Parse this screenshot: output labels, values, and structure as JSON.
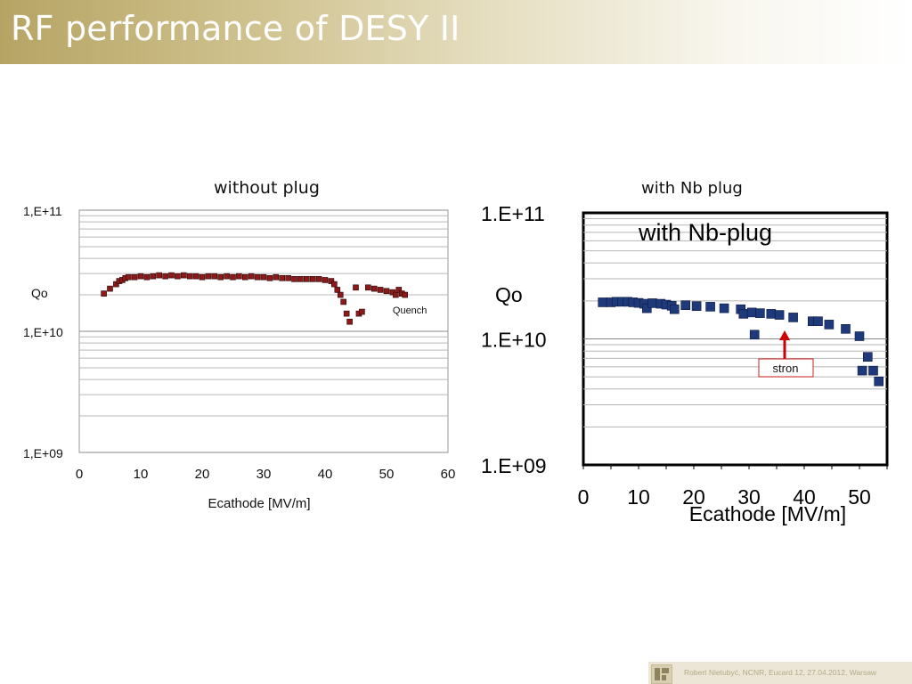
{
  "slide": {
    "title": "RF performance of DESY II",
    "footer": "Robert Nietubyć, NCNR,  Eucard 12, 27.04.2012, Warsaw"
  },
  "colors": {
    "title_gradient": [
      "#b6a464",
      "#ffffff"
    ],
    "series_left": "#8b1a1a",
    "series_right": "#1f3a7a",
    "arrow": "#cc0000"
  },
  "chart_data": [
    {
      "type": "scatter",
      "title": "without plug",
      "xlabel": "Ecathode [MV/m]",
      "ylabel": "Qo",
      "xlim": [
        0,
        60
      ],
      "ylim": [
        1000000000.0,
        100000000000.0
      ],
      "yscale": "log",
      "x_ticks": [
        "0",
        "10",
        "20",
        "30",
        "40",
        "50",
        "60"
      ],
      "y_ticks": [
        "1,E+09",
        "1,E+10",
        "1,E+11"
      ],
      "grid": true,
      "annotations": [
        {
          "text": "Quench",
          "x": 51,
          "y": 15000000000.0
        }
      ],
      "series": [
        {
          "points": [
            [
              4,
              20500000000.0
            ],
            [
              5,
              22500000000.0
            ],
            [
              6,
              24500000000.0
            ],
            [
              6.5,
              26000000000.0
            ],
            [
              7,
              26500000000.0
            ],
            [
              7.5,
              27500000000.0
            ],
            [
              8,
              28000000000.0
            ],
            [
              9,
              28000000000.0
            ],
            [
              10,
              28500000000.0
            ],
            [
              11,
              28000000000.0
            ],
            [
              12,
              28500000000.0
            ],
            [
              13,
              29000000000.0
            ],
            [
              14,
              28500000000.0
            ],
            [
              15,
              29000000000.0
            ],
            [
              16,
              28500000000.0
            ],
            [
              17,
              29000000000.0
            ],
            [
              18,
              28500000000.0
            ],
            [
              19,
              28500000000.0
            ],
            [
              20,
              28000000000.0
            ],
            [
              21,
              28500000000.0
            ],
            [
              22,
              28500000000.0
            ],
            [
              23,
              28000000000.0
            ],
            [
              24,
              28500000000.0
            ],
            [
              25,
              28000000000.0
            ],
            [
              26,
              28500000000.0
            ],
            [
              27,
              28000000000.0
            ],
            [
              28,
              28500000000.0
            ],
            [
              29,
              28000000000.0
            ],
            [
              30,
              28000000000.0
            ],
            [
              31,
              27500000000.0
            ],
            [
              32,
              28000000000.0
            ],
            [
              33,
              27500000000.0
            ],
            [
              34,
              27500000000.0
            ],
            [
              35,
              27000000000.0
            ],
            [
              36,
              27000000000.0
            ],
            [
              37,
              27000000000.0
            ],
            [
              38,
              27000000000.0
            ],
            [
              39,
              27000000000.0
            ],
            [
              40,
              26500000000.0
            ],
            [
              41,
              26000000000.0
            ],
            [
              41.5,
              24500000000.0
            ],
            [
              42,
              22000000000.0
            ],
            [
              42.5,
              20000000000.0
            ],
            [
              43,
              17500000000.0
            ],
            [
              43.5,
              14000000000.0
            ],
            [
              44,
              12000000000.0
            ],
            [
              45,
              23000000000.0
            ],
            [
              45.5,
              14000000000.0
            ],
            [
              46,
              14500000000.0
            ],
            [
              47,
              23000000000.0
            ],
            [
              48,
              22500000000.0
            ],
            [
              49,
              22000000000.0
            ],
            [
              50,
              21500000000.0
            ],
            [
              51,
              21000000000.0
            ],
            [
              51.5,
              20000000000.0
            ],
            [
              52,
              22000000000.0
            ],
            [
              52.5,
              20500000000.0
            ],
            [
              53,
              20000000000.0
            ]
          ]
        }
      ]
    },
    {
      "type": "scatter",
      "title": "with Nb plug",
      "subtitle": "with Nb-plug",
      "xlabel": "Ecathode [MV/m]",
      "ylabel": "Qo",
      "xlim": [
        0,
        55
      ],
      "ylim": [
        1000000000.0,
        100000000000.0
      ],
      "yscale": "log",
      "x_ticks": [
        "0",
        "10",
        "20",
        "30",
        "40",
        "50"
      ],
      "y_ticks": [
        "1.E+09",
        "1.E+10",
        "1.E+11"
      ],
      "grid": true,
      "annotations": [
        {
          "text": "stron",
          "x": 36,
          "y": 10000000000.0
        }
      ],
      "series": [
        {
          "points": [
            [
              3.5,
              19500000000.0
            ],
            [
              5,
              19500000000.0
            ],
            [
              6,
              19700000000.0
            ],
            [
              7,
              19700000000.0
            ],
            [
              8,
              19700000000.0
            ],
            [
              9,
              19500000000.0
            ],
            [
              10,
              19300000000.0
            ],
            [
              11,
              19000000000.0
            ],
            [
              11.5,
              17500000000.0
            ],
            [
              12.5,
              19200000000.0
            ],
            [
              14,
              19000000000.0
            ],
            [
              15,
              18700000000.0
            ],
            [
              16,
              18300000000.0
            ],
            [
              16.5,
              17200000000.0
            ],
            [
              18.5,
              18500000000.0
            ],
            [
              20.5,
              18200000000.0
            ],
            [
              23,
              18000000000.0
            ],
            [
              25.5,
              17500000000.0
            ],
            [
              28.5,
              17200000000.0
            ],
            [
              29,
              15800000000.0
            ],
            [
              30.5,
              16200000000.0
            ],
            [
              32,
              16000000000.0
            ],
            [
              34,
              15800000000.0
            ],
            [
              35.5,
              15500000000.0
            ],
            [
              38,
              14800000000.0
            ],
            [
              41.5,
              13800000000.0
            ],
            [
              42.5,
              13800000000.0
            ],
            [
              44.5,
              13000000000.0
            ],
            [
              47.5,
              12000000000.0
            ],
            [
              50,
              10500000000.0
            ],
            [
              51.5,
              7200000000.0
            ],
            [
              50.5,
              5600000000.0
            ],
            [
              52.5,
              5600000000.0
            ],
            [
              53.5,
              4600000000.0
            ],
            [
              31,
              10800000000.0
            ]
          ]
        }
      ]
    }
  ]
}
